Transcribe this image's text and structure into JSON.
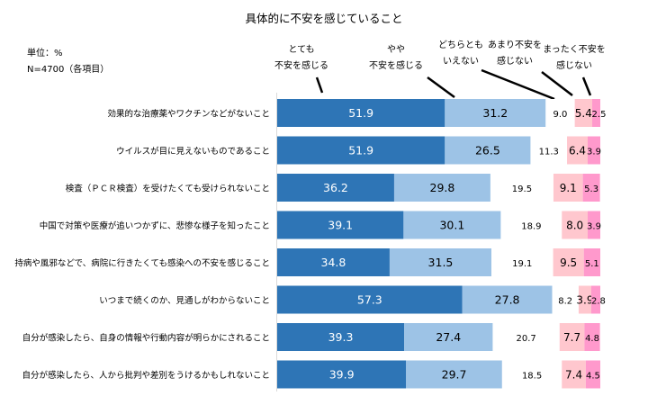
{
  "chart_data": {
    "type": "bar",
    "stacked": true,
    "orientation": "horizontal",
    "title": "具体的に不安を感じていること",
    "unit_label": "単位：%",
    "n_label": "N=4700（各項目）",
    "xlim": [
      0,
      100
    ],
    "categories": [
      "効果的な治療薬やワクチンなどがないこと",
      "ウイルスが目に見えないものであること",
      "検査（ＰＣＲ検査）を受けたくても受けられないこと",
      "中国で対策や医療が追いつかずに、悲惨な様子を知ったこと",
      "持病や風邪などで、病院に行きたくても感染への不安を感じること",
      "いつまで続くのか、見通しがわからないこと",
      "自分が感染したら、自身の情報や行動内容が明らかにされること",
      "自分が感染したら、人から批判や差別をうけるかもしれないこと"
    ],
    "series": [
      {
        "name": "とても不安を感じる",
        "name_lines": [
          "とても",
          "不安を感じる"
        ],
        "color": "#2e75b6",
        "label_color": "#ffffff",
        "values": [
          51.9,
          51.9,
          36.2,
          39.1,
          34.8,
          57.3,
          39.3,
          39.9
        ]
      },
      {
        "name": "やや不安を感じる",
        "name_lines": [
          "やや",
          "不安を感じる"
        ],
        "color": "#9dc3e6",
        "label_color": "#000000",
        "values": [
          31.2,
          26.5,
          29.8,
          30.1,
          31.5,
          27.8,
          27.4,
          29.7
        ]
      },
      {
        "name": "どちらともいえない",
        "name_lines": [
          "どちらとも",
          "いえない"
        ],
        "color": "#ffffff",
        "label_color": "#000000",
        "values": [
          9.0,
          11.3,
          19.5,
          18.9,
          19.1,
          8.2,
          20.7,
          18.5
        ]
      },
      {
        "name": "あまり不安を感じない",
        "name_lines": [
          "あまり不安を",
          "感じない"
        ],
        "color": "#ffc7ce",
        "label_color": "#000000",
        "values": [
          5.4,
          6.4,
          9.1,
          8.0,
          9.5,
          3.9,
          7.7,
          7.4
        ]
      },
      {
        "name": "まったく不安を感じない",
        "name_lines": [
          "まったく不安を",
          "感じない"
        ],
        "color": "#ff99cc",
        "label_color": "#000000",
        "values": [
          2.5,
          3.9,
          5.3,
          3.9,
          5.1,
          2.8,
          4.8,
          4.5
        ]
      }
    ]
  }
}
